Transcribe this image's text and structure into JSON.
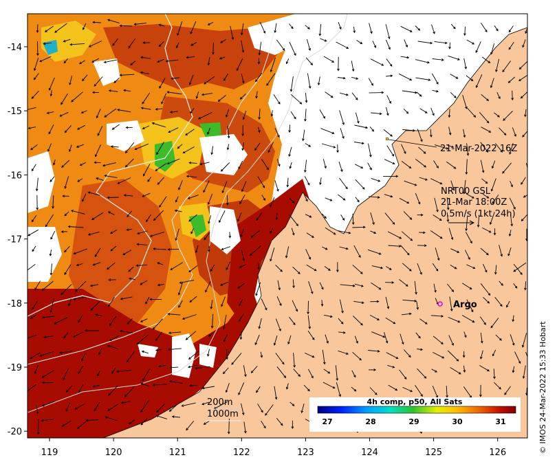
{
  "map": {
    "x_ticks": [
      "119",
      "120",
      "121",
      "122",
      "123",
      "124",
      "125",
      "126"
    ],
    "y_ticks": [
      "-14",
      "-15",
      "-16",
      "-17",
      "-18",
      "-19",
      "-20"
    ]
  },
  "annotations": {
    "ship_time": "21-Mar-2022 16Z",
    "current_line1": "NRT00 GSL",
    "current_line2": "21-Mar 18:00Z",
    "current_line3": "0.5m/s (1kt 24h)",
    "argo_label": "Argo",
    "depth_200": "200m",
    "depth_1000": "1000m"
  },
  "colorbar": {
    "title": "4h comp, p50, All Sats",
    "ticks": [
      "27",
      "28",
      "29",
      "30",
      "31"
    ]
  },
  "credit": "© IMOS 24-Mar-2022 15:33 Hobart",
  "colors": {
    "land": "#f8c79c",
    "sst_hot": "#a80c00",
    "sst_warm": "#d9480f",
    "sst_mid": "#f08010",
    "sst_cool": "#f3c21b",
    "sst_green": "#3dbb2a",
    "argo": "#e000e0"
  }
}
